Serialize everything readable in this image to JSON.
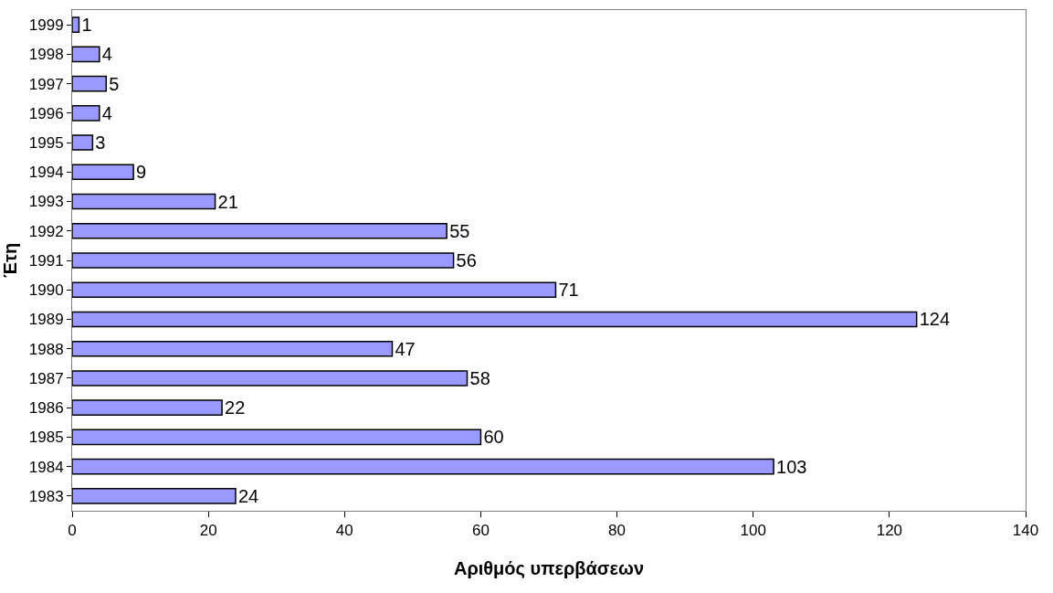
{
  "chart_data": {
    "type": "bar",
    "orientation": "horizontal",
    "xlabel": "Αριθμός υπερβάσεων",
    "ylabel": "Έτη",
    "categories": [
      "1999",
      "1998",
      "1997",
      "1996",
      "1995",
      "1994",
      "1993",
      "1992",
      "1991",
      "1990",
      "1989",
      "1988",
      "1987",
      "1986",
      "1985",
      "1984",
      "1983"
    ],
    "values": [
      1,
      4,
      5,
      4,
      3,
      9,
      21,
      55,
      56,
      71,
      124,
      47,
      58,
      22,
      60,
      103,
      24
    ],
    "color": "#9999ff",
    "xlim": [
      0,
      140
    ],
    "xticks": [
      0,
      20,
      40,
      60,
      80,
      100,
      120,
      140
    ],
    "data_labels": true
  }
}
